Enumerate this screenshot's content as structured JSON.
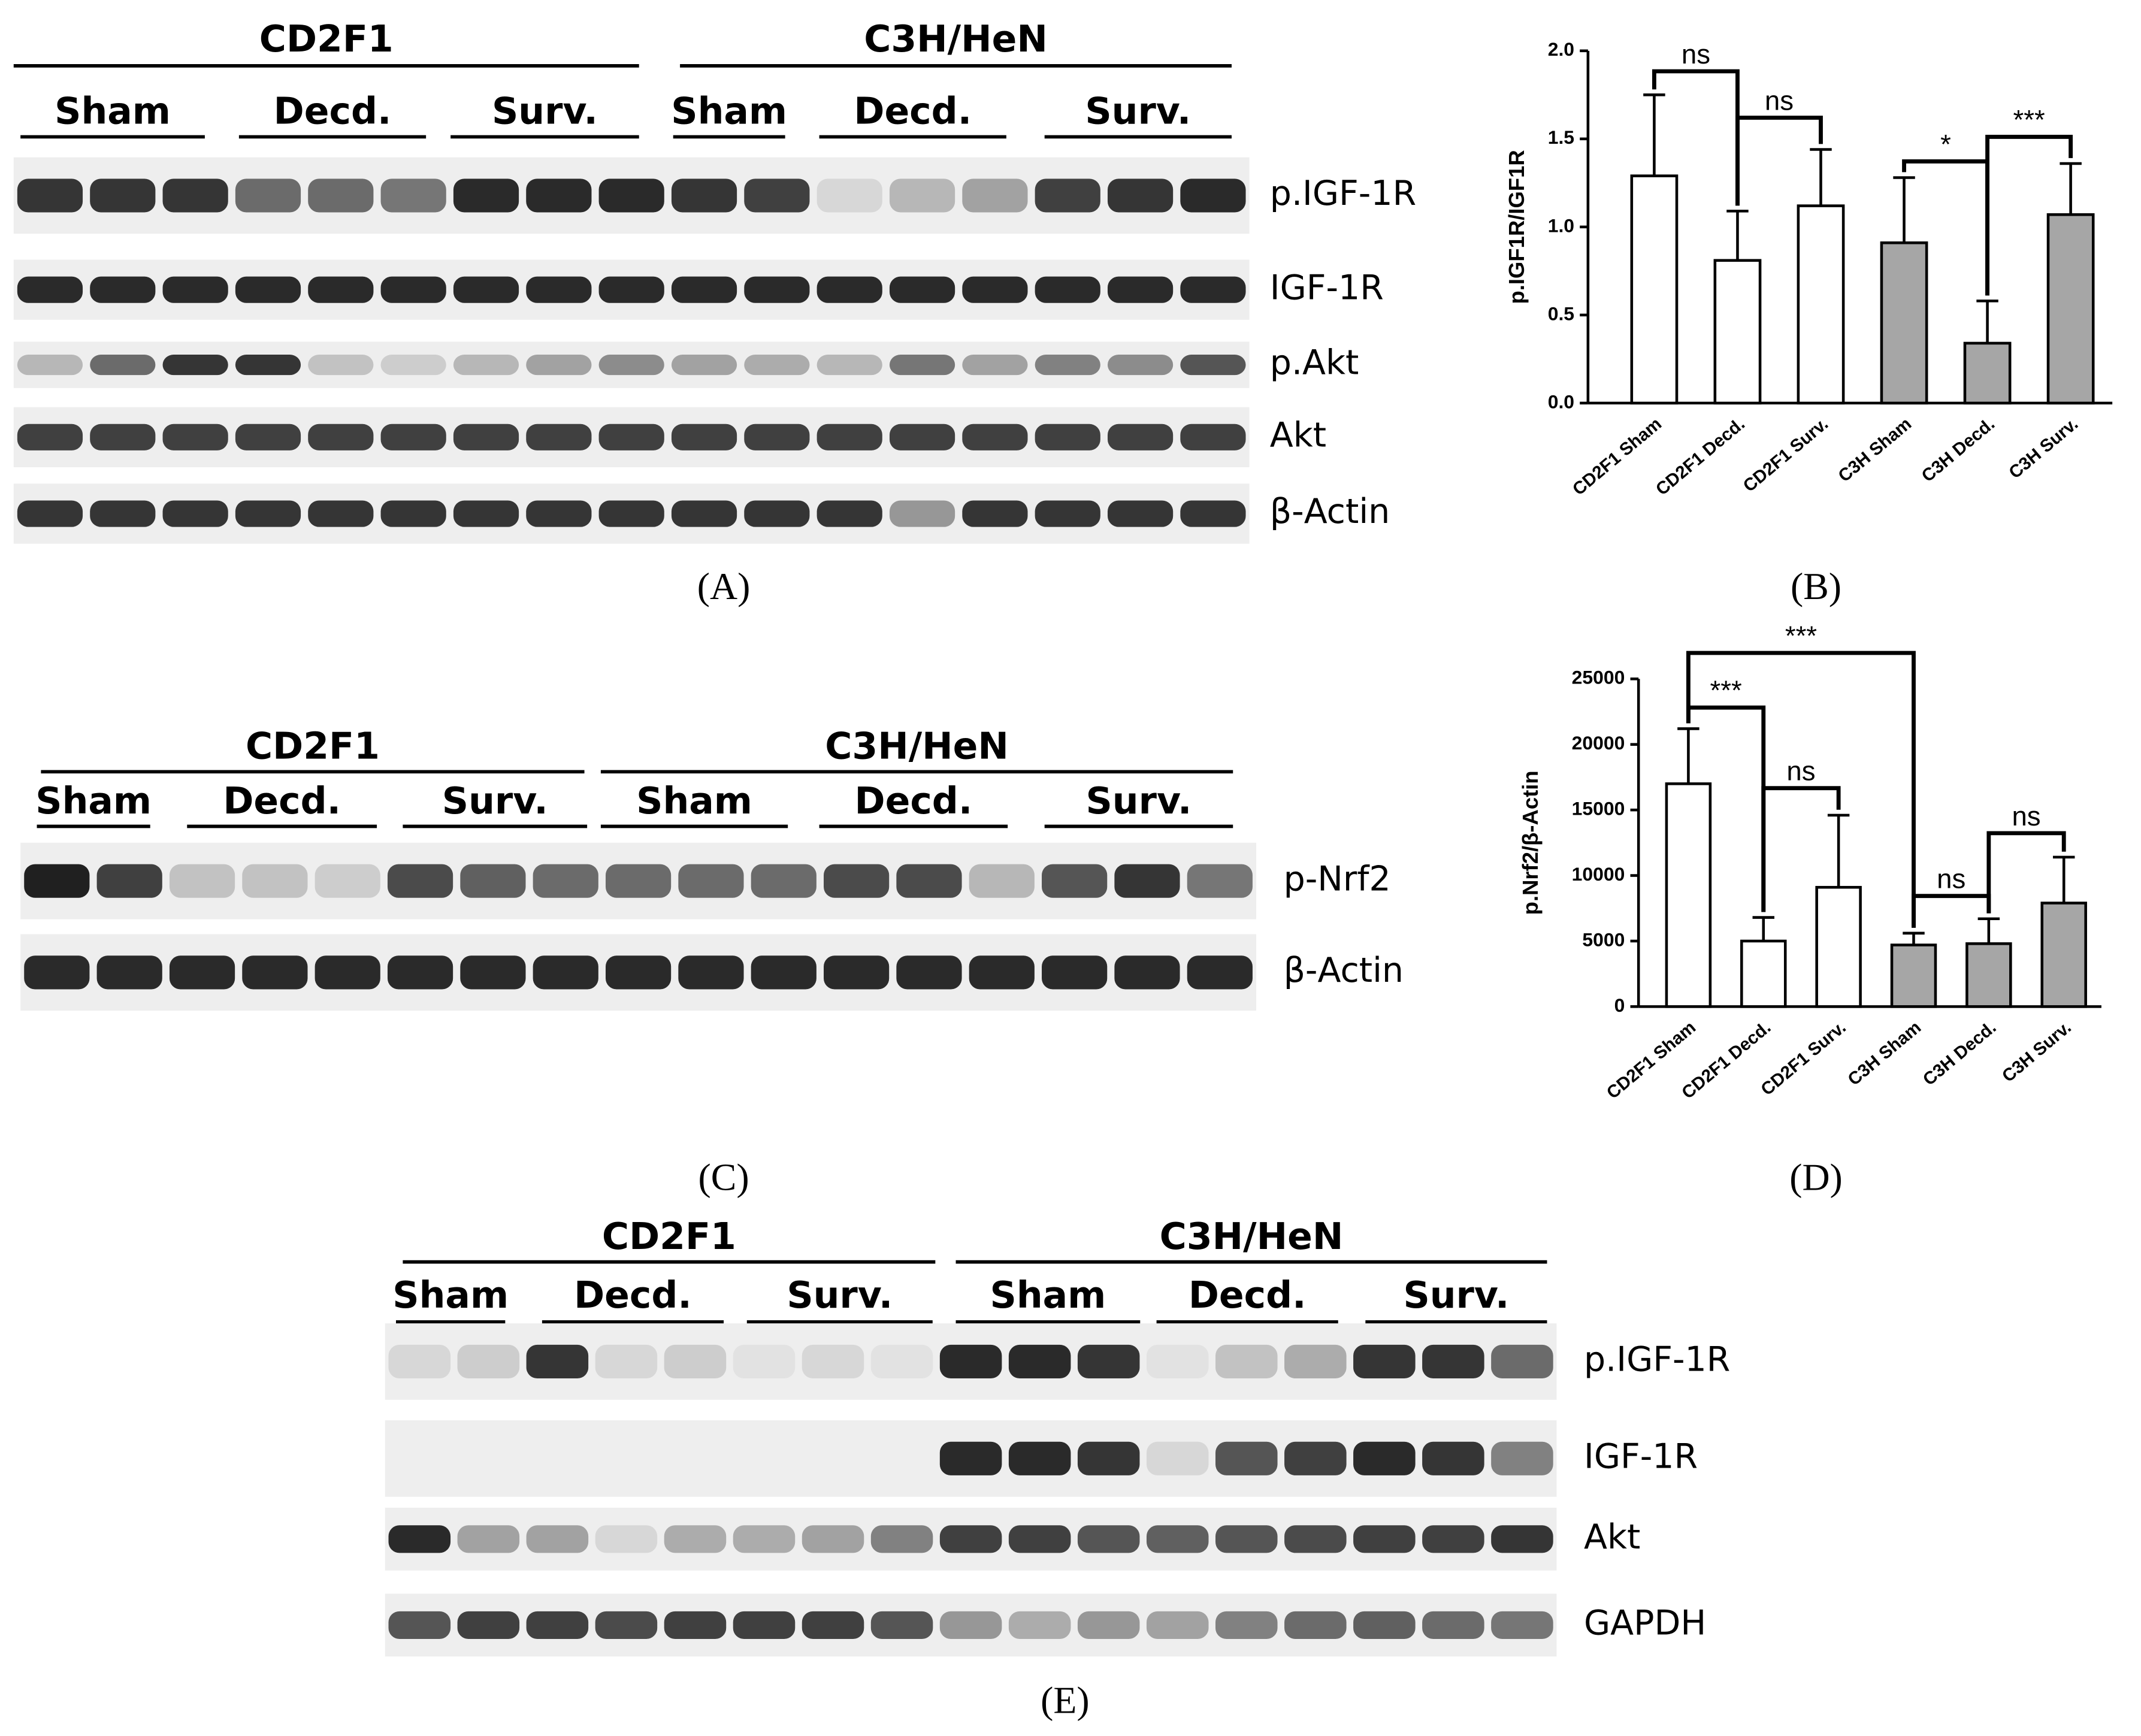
{
  "chart_data": [
    {
      "type": "bar",
      "panel": "(B)",
      "ylabel": "p.IGF1R/IGF1R",
      "categories": [
        "CD2F1 Sham",
        "CD2F1 Decd.",
        "CD2F1 Surv.",
        "C3H Sham",
        "C3H Decd.",
        "C3H Surv."
      ],
      "values": [
        1.29,
        0.81,
        1.12,
        0.91,
        0.34,
        1.07
      ],
      "errors": [
        0.46,
        0.28,
        0.32,
        0.37,
        0.24,
        0.29
      ],
      "colors": [
        "#ffffff",
        "#ffffff",
        "#ffffff",
        "#a6a6a6",
        "#a6a6a6",
        "#a6a6a6"
      ],
      "ylim": [
        0,
        2
      ],
      "yticks": [
        {
          "value": 0,
          "label": "0.0"
        },
        0.5,
        {
          "value": 1,
          "label": "1.0"
        },
        1.5,
        {
          "value": 2,
          "label": "2.0"
        }
      ],
      "annotations": [
        "ns",
        "ns",
        "*",
        "***"
      ]
    },
    {
      "type": "bar",
      "panel": "(D)",
      "ylabel": "p.Nrf2/β-Actin",
      "categories": [
        "CD2F1 Sham",
        "CD2F1 Decd.",
        "CD2F1 Surv.",
        "C3H Sham",
        "C3H Decd.",
        "C3H Surv."
      ],
      "values": [
        17000,
        5000,
        9100,
        4700,
        4800,
        7900
      ],
      "errors": [
        4200,
        1800,
        5500,
        900,
        1900,
        3500
      ],
      "colors": [
        "#ffffff",
        "#ffffff",
        "#ffffff",
        "#a6a6a6",
        "#a6a6a6",
        "#a6a6a6"
      ],
      "ylim": [
        0,
        25000
      ],
      "yticks": [
        0,
        5000,
        10000,
        15000,
        20000,
        25000
      ],
      "annotations": [
        "***",
        "***",
        "ns",
        "ns",
        "ns"
      ]
    }
  ],
  "blots": [
    {
      "panel": "(A)",
      "groups": [
        {
          "name": "CD2F1",
          "subgroups": [
            "Sham",
            "Decd.",
            "Surv."
          ]
        },
        {
          "name": "C3H/HeN",
          "subgroups": [
            "Sham",
            "Decd.",
            "Surv."
          ]
        }
      ],
      "rows": [
        "p.IGF-1R",
        "IGF-1R",
        "p.Akt",
        "Akt",
        "β-Actin"
      ]
    },
    {
      "panel": "(C)",
      "groups": [
        {
          "name": "CD2F1",
          "subgroups": [
            "Sham",
            "Decd.",
            "Surv."
          ]
        },
        {
          "name": "C3H/HeN",
          "subgroups": [
            "Sham",
            "Decd.",
            "Surv."
          ]
        }
      ],
      "rows": [
        "p-Nrf2",
        "β-Actin"
      ]
    },
    {
      "panel": "(E)",
      "groups": [
        {
          "name": "CD2F1",
          "subgroups": [
            "Sham",
            "Decd.",
            "Surv."
          ]
        },
        {
          "name": "C3H/HeN",
          "subgroups": [
            "Sham",
            "Decd.",
            "Surv."
          ]
        }
      ],
      "rows": [
        "p.IGF-1R",
        "IGF-1R",
        "Akt",
        "GAPDH"
      ]
    }
  ]
}
